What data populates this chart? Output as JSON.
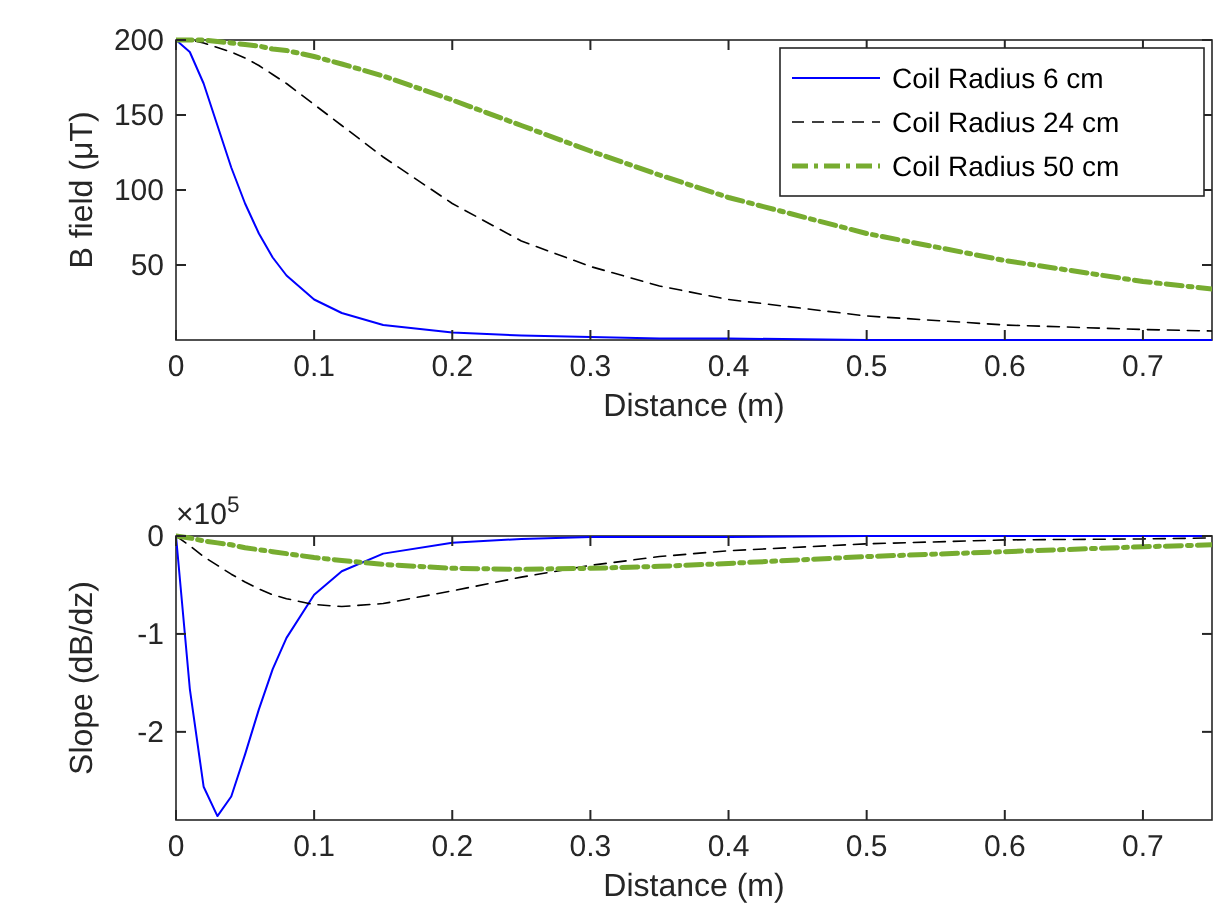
{
  "chart_data": [
    {
      "type": "line",
      "xlabel": "Distance (m)",
      "ylabel": "B field (μT)",
      "x": [
        0,
        0.01,
        0.02,
        0.03,
        0.04,
        0.05,
        0.06,
        0.07,
        0.08,
        0.1,
        0.12,
        0.15,
        0.2,
        0.25,
        0.3,
        0.35,
        0.4,
        0.5,
        0.6,
        0.7,
        0.75
      ],
      "xlim": [
        0,
        0.75
      ],
      "xticks": [
        0,
        0.1,
        0.2,
        0.3,
        0.4,
        0.5,
        0.6,
        0.7
      ],
      "ylim": [
        0,
        200
      ],
      "yticks": [
        50,
        100,
        150,
        200
      ],
      "grid": false,
      "legend": "top right",
      "series": [
        {
          "name": "Coil Radius 6 cm",
          "color": "#0000ff",
          "line_style": "solid",
          "values": [
            200,
            192,
            171,
            143,
            115,
            91,
            71,
            55,
            43,
            27,
            18,
            10,
            5,
            3,
            2,
            1,
            1,
            0,
            0,
            0,
            0
          ]
        },
        {
          "name": "Coil Radius 24 cm",
          "color": "#000000",
          "line_style": "dashed",
          "values": [
            200,
            200,
            198,
            195,
            192,
            188,
            183,
            177,
            171,
            157,
            143,
            122,
            91,
            66,
            49,
            36,
            27,
            16,
            10,
            7,
            6
          ]
        },
        {
          "name": "Coil Radius 50 cm",
          "color": "#77ac30",
          "line_style": "dashdot",
          "values": [
            200,
            200,
            200,
            199,
            198,
            197,
            196,
            194,
            193,
            189,
            184,
            176,
            160,
            143,
            126,
            110,
            95,
            71,
            53,
            39,
            34
          ]
        }
      ]
    },
    {
      "type": "line",
      "xlabel": "Distance (m)",
      "ylabel": "Slope (dB/dz)",
      "annotations": [
        "×10$^{5}$"
      ],
      "x": [
        0,
        0.01,
        0.02,
        0.03,
        0.04,
        0.05,
        0.06,
        0.07,
        0.08,
        0.1,
        0.12,
        0.15,
        0.2,
        0.25,
        0.3,
        0.35,
        0.4,
        0.5,
        0.6,
        0.7,
        0.75
      ],
      "xlim": [
        0,
        0.75
      ],
      "xticks": [
        0,
        0.1,
        0.2,
        0.3,
        0.4,
        0.5,
        0.6,
        0.7
      ],
      "ylim": [
        -2.9,
        0
      ],
      "yticks": [
        -2,
        -1,
        0
      ],
      "grid": false,
      "legend": false,
      "series": [
        {
          "color": "#0000ff",
          "line_style": "solid",
          "values": [
            0,
            -1.56,
            -2.56,
            -2.86,
            -2.66,
            -2.23,
            -1.77,
            -1.36,
            -1.04,
            -0.6,
            -0.36,
            -0.18,
            -0.07,
            -0.03,
            -0.01,
            -0.01,
            -0.01,
            0,
            0,
            0,
            0
          ]
        },
        {
          "color": "#000000",
          "line_style": "dashed",
          "values": [
            0,
            -0.1,
            -0.21,
            -0.3,
            -0.39,
            -0.47,
            -0.54,
            -0.6,
            -0.64,
            -0.7,
            -0.72,
            -0.69,
            -0.56,
            -0.42,
            -0.3,
            -0.21,
            -0.15,
            -0.08,
            -0.04,
            -0.03,
            -0.02
          ]
        },
        {
          "color": "#77ac30",
          "line_style": "dashdot",
          "values": [
            0,
            -0.02,
            -0.05,
            -0.07,
            -0.09,
            -0.12,
            -0.14,
            -0.16,
            -0.18,
            -0.22,
            -0.25,
            -0.29,
            -0.33,
            -0.34,
            -0.33,
            -0.31,
            -0.28,
            -0.21,
            -0.16,
            -0.11,
            -0.09
          ]
        }
      ]
    }
  ]
}
